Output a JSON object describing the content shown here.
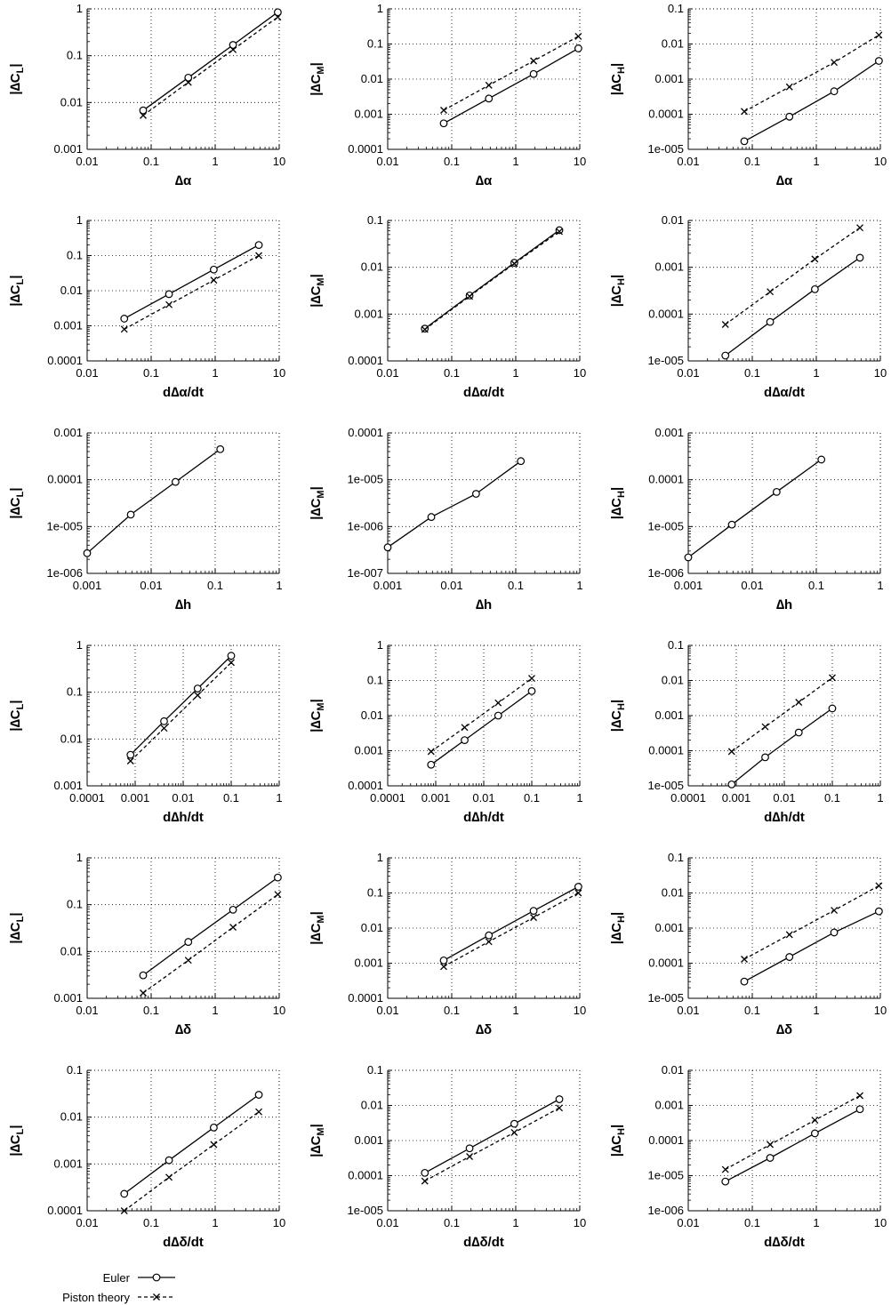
{
  "legend": {
    "series": [
      {
        "name": "Euler",
        "marker": "circle",
        "dash": "solid"
      },
      {
        "name": "Piston theory",
        "marker": "x",
        "dash": "dashed"
      }
    ]
  },
  "chart_data": [
    {
      "type": "line",
      "xscale": "log",
      "yscale": "log",
      "xlabel": "∆α",
      "ylabel": "|∆CL|",
      "xlim": [
        0.01,
        10
      ],
      "ylim": [
        0.001,
        1
      ],
      "xticks": [
        "0.01",
        "0.1",
        "1",
        "10"
      ],
      "yticks": [
        "0.001",
        "0.01",
        "0.1",
        "1"
      ],
      "series": [
        {
          "name": "Euler",
          "x": [
            0.075,
            0.38,
            1.9,
            9.5
          ],
          "values": [
            0.0068,
            0.034,
            0.17,
            0.85
          ]
        },
        {
          "name": "Piston theory",
          "x": [
            0.075,
            0.38,
            1.9,
            9.5
          ],
          "values": [
            0.0053,
            0.027,
            0.135,
            0.67
          ]
        }
      ]
    },
    {
      "type": "line",
      "xscale": "log",
      "yscale": "log",
      "xlabel": "∆α",
      "ylabel": "|∆CM|",
      "xlim": [
        0.01,
        10
      ],
      "ylim": [
        0.0001,
        1
      ],
      "xticks": [
        "0.01",
        "0.1",
        "1",
        "10"
      ],
      "yticks": [
        "0.0001",
        "0.001",
        "0.01",
        "0.1",
        "1"
      ],
      "series": [
        {
          "name": "Euler",
          "x": [
            0.075,
            0.38,
            1.9,
            9.5
          ],
          "values": [
            0.00055,
            0.0028,
            0.014,
            0.075
          ]
        },
        {
          "name": "Piston theory",
          "x": [
            0.075,
            0.38,
            1.9,
            9.5
          ],
          "values": [
            0.0013,
            0.0067,
            0.033,
            0.165
          ]
        }
      ]
    },
    {
      "type": "line",
      "xscale": "log",
      "yscale": "log",
      "xlabel": "∆α",
      "ylabel": "|∆CH|",
      "xlim": [
        0.01,
        10
      ],
      "ylim": [
        1e-05,
        0.1
      ],
      "xticks": [
        "0.01",
        "0.1",
        "1",
        "10"
      ],
      "yticks": [
        "1e-005",
        "0.0001",
        "0.001",
        "0.01",
        "0.1"
      ],
      "series": [
        {
          "name": "Euler",
          "x": [
            0.075,
            0.38,
            1.9,
            9.5
          ],
          "values": [
            1.7e-05,
            8.5e-05,
            0.00045,
            0.0033
          ]
        },
        {
          "name": "Piston theory",
          "x": [
            0.075,
            0.38,
            1.9,
            9.5
          ],
          "values": [
            0.00012,
            0.0006,
            0.003,
            0.018
          ]
        }
      ]
    },
    {
      "type": "line",
      "xscale": "log",
      "yscale": "log",
      "xlabel": "d∆α/dt",
      "ylabel": "|∆CL|",
      "xlim": [
        0.01,
        10
      ],
      "ylim": [
        0.0001,
        1
      ],
      "xticks": [
        "0.01",
        "0.1",
        "1",
        "10"
      ],
      "yticks": [
        "0.0001",
        "0.001",
        "0.01",
        "0.1",
        "1"
      ],
      "series": [
        {
          "name": "Euler",
          "x": [
            0.038,
            0.19,
            0.95,
            4.8
          ],
          "values": [
            0.0016,
            0.008,
            0.04,
            0.2
          ]
        },
        {
          "name": "Piston theory",
          "x": [
            0.038,
            0.19,
            0.95,
            4.8
          ],
          "values": [
            0.0008,
            0.004,
            0.02,
            0.1
          ]
        }
      ]
    },
    {
      "type": "line",
      "xscale": "log",
      "yscale": "log",
      "xlabel": "d∆α/dt",
      "ylabel": "|∆CM|",
      "xlim": [
        0.01,
        10
      ],
      "ylim": [
        0.0001,
        0.1
      ],
      "xticks": [
        "0.01",
        "0.1",
        "1",
        "10"
      ],
      "yticks": [
        "0.0001",
        "0.001",
        "0.01",
        "0.1"
      ],
      "series": [
        {
          "name": "Euler",
          "x": [
            0.038,
            0.19,
            0.95,
            4.8
          ],
          "values": [
            0.00049,
            0.0025,
            0.0125,
            0.062
          ]
        },
        {
          "name": "Piston theory",
          "x": [
            0.038,
            0.19,
            0.95,
            4.8
          ],
          "values": [
            0.00047,
            0.0024,
            0.012,
            0.058
          ]
        }
      ]
    },
    {
      "type": "line",
      "xscale": "log",
      "yscale": "log",
      "xlabel": "d∆α/dt",
      "ylabel": "|∆CH|",
      "xlim": [
        0.01,
        10
      ],
      "ylim": [
        1e-05,
        0.01
      ],
      "xticks": [
        "0.01",
        "0.1",
        "1",
        "10"
      ],
      "yticks": [
        "1e-005",
        "0.0001",
        "0.001",
        "0.01"
      ],
      "series": [
        {
          "name": "Euler",
          "x": [
            0.038,
            0.19,
            0.95,
            4.8
          ],
          "values": [
            1.3e-05,
            6.8e-05,
            0.00034,
            0.0016
          ]
        },
        {
          "name": "Piston theory",
          "x": [
            0.038,
            0.19,
            0.95,
            4.8
          ],
          "values": [
            6e-05,
            0.0003,
            0.0015,
            0.007
          ]
        }
      ]
    },
    {
      "type": "line",
      "xscale": "log",
      "yscale": "log",
      "xlabel": "∆h",
      "ylabel": "|∆CL|",
      "xlim": [
        0.001,
        1
      ],
      "ylim": [
        1e-06,
        0.001
      ],
      "xticks": [
        "0.001",
        "0.01",
        "0.1",
        "1"
      ],
      "yticks": [
        "1e-006",
        "1e-005",
        "0.0001",
        "0.001"
      ],
      "series": [
        {
          "name": "Euler",
          "x": [
            0.001,
            0.0048,
            0.024,
            0.12
          ],
          "values": [
            2.7e-06,
            1.8e-05,
            9e-05,
            0.00045
          ]
        }
      ]
    },
    {
      "type": "line",
      "xscale": "log",
      "yscale": "log",
      "xlabel": "∆h",
      "ylabel": "|∆CM|",
      "xlim": [
        0.001,
        1
      ],
      "ylim": [
        1e-07,
        0.0001
      ],
      "xticks": [
        "0.001",
        "0.01",
        "0.1",
        "1"
      ],
      "yticks": [
        "1e-007",
        "1e-006",
        "1e-005",
        "0.0001"
      ],
      "series": [
        {
          "name": "Euler",
          "x": [
            0.001,
            0.0048,
            0.024,
            0.12
          ],
          "values": [
            3.6e-07,
            1.6e-06,
            5e-06,
            2.5e-05
          ]
        }
      ]
    },
    {
      "type": "line",
      "xscale": "log",
      "yscale": "log",
      "xlabel": "∆h",
      "ylabel": "|∆CH|",
      "xlim": [
        0.001,
        1
      ],
      "ylim": [
        1e-06,
        0.001
      ],
      "xticks": [
        "0.001",
        "0.01",
        "0.1",
        "1"
      ],
      "yticks": [
        "1e-006",
        "1e-005",
        "0.0001",
        "0.001"
      ],
      "series": [
        {
          "name": "Euler",
          "x": [
            0.001,
            0.0048,
            0.024,
            0.12
          ],
          "values": [
            2.2e-06,
            1.1e-05,
            5.5e-05,
            0.00027
          ]
        }
      ]
    },
    {
      "type": "line",
      "xscale": "log",
      "yscale": "log",
      "xlabel": "d∆h/dt",
      "ylabel": "|∆CL|",
      "xlim": [
        0.0001,
        1
      ],
      "ylim": [
        0.001,
        1
      ],
      "xticks": [
        "0.0001",
        "0.001",
        "0.01",
        "0.1",
        "1"
      ],
      "yticks": [
        "0.001",
        "0.01",
        "0.1",
        "1"
      ],
      "series": [
        {
          "name": "Euler",
          "x": [
            0.0008,
            0.004,
            0.02,
            0.1
          ],
          "values": [
            0.0046,
            0.024,
            0.12,
            0.6
          ]
        },
        {
          "name": "Piston theory",
          "x": [
            0.0008,
            0.004,
            0.02,
            0.1
          ],
          "values": [
            0.0034,
            0.017,
            0.086,
            0.43
          ]
        }
      ]
    },
    {
      "type": "line",
      "xscale": "log",
      "yscale": "log",
      "xlabel": "d∆h/dt",
      "ylabel": "|∆CM|",
      "xlim": [
        0.0001,
        1
      ],
      "ylim": [
        0.0001,
        1
      ],
      "xticks": [
        "0.0001",
        "0.001",
        "0.01",
        "0.1",
        "1"
      ],
      "yticks": [
        "0.0001",
        "0.001",
        "0.01",
        "0.1",
        "1"
      ],
      "series": [
        {
          "name": "Euler",
          "x": [
            0.0008,
            0.004,
            0.02,
            0.1
          ],
          "values": [
            0.0004,
            0.002,
            0.01,
            0.05
          ]
        },
        {
          "name": "Piston theory",
          "x": [
            0.0008,
            0.004,
            0.02,
            0.1
          ],
          "values": [
            0.00095,
            0.0046,
            0.023,
            0.115
          ]
        }
      ]
    },
    {
      "type": "line",
      "xscale": "log",
      "yscale": "log",
      "xlabel": "d∆h/dt",
      "ylabel": "|∆CH|",
      "xlim": [
        0.0001,
        1
      ],
      "ylim": [
        1e-05,
        0.1
      ],
      "xticks": [
        "0.0001",
        "0.001",
        "0.01",
        "0.1",
        "1"
      ],
      "yticks": [
        "1e-005",
        "0.0001",
        "0.001",
        "0.01",
        "0.1"
      ],
      "series": [
        {
          "name": "Euler",
          "x": [
            0.0008,
            0.004,
            0.02,
            0.1
          ],
          "values": [
            1.1e-05,
            6.5e-05,
            0.00033,
            0.0016
          ]
        },
        {
          "name": "Piston theory",
          "x": [
            0.0008,
            0.004,
            0.02,
            0.1
          ],
          "values": [
            9.5e-05,
            0.00048,
            0.0024,
            0.012
          ]
        }
      ]
    },
    {
      "type": "line",
      "xscale": "log",
      "yscale": "log",
      "xlabel": "∆δ",
      "ylabel": "|∆CL|",
      "xlim": [
        0.01,
        10
      ],
      "ylim": [
        0.001,
        1
      ],
      "xticks": [
        "0.01",
        "0.1",
        "1",
        "10"
      ],
      "yticks": [
        "0.001",
        "0.01",
        "0.1",
        "1"
      ],
      "series": [
        {
          "name": "Euler",
          "x": [
            0.075,
            0.38,
            1.9,
            9.5
          ],
          "values": [
            0.0031,
            0.016,
            0.078,
            0.38
          ]
        },
        {
          "name": "Piston theory",
          "x": [
            0.075,
            0.38,
            1.9,
            9.5
          ],
          "values": [
            0.0013,
            0.0065,
            0.033,
            0.165
          ]
        }
      ]
    },
    {
      "type": "line",
      "xscale": "log",
      "yscale": "log",
      "xlabel": "∆δ",
      "ylabel": "|∆CM|",
      "xlim": [
        0.01,
        10
      ],
      "ylim": [
        0.0001,
        1
      ],
      "xticks": [
        "0.01",
        "0.1",
        "1",
        "10"
      ],
      "yticks": [
        "0.0001",
        "0.001",
        "0.01",
        "0.1",
        "1"
      ],
      "series": [
        {
          "name": "Euler",
          "x": [
            0.075,
            0.38,
            1.9,
            9.5
          ],
          "values": [
            0.0012,
            0.0062,
            0.031,
            0.15
          ]
        },
        {
          "name": "Piston theory",
          "x": [
            0.075,
            0.38,
            1.9,
            9.5
          ],
          "values": [
            0.0008,
            0.0041,
            0.02,
            0.1
          ]
        }
      ]
    },
    {
      "type": "line",
      "xscale": "log",
      "yscale": "log",
      "xlabel": "∆δ",
      "ylabel": "|∆CH|",
      "xlim": [
        0.01,
        10
      ],
      "ylim": [
        1e-05,
        0.1
      ],
      "xticks": [
        "0.01",
        "0.1",
        "1",
        "10"
      ],
      "yticks": [
        "1e-005",
        "0.0001",
        "0.001",
        "0.01",
        "0.1"
      ],
      "series": [
        {
          "name": "Euler",
          "x": [
            0.075,
            0.38,
            1.9,
            9.5
          ],
          "values": [
            3e-05,
            0.00015,
            0.00075,
            0.003
          ]
        },
        {
          "name": "Piston theory",
          "x": [
            0.075,
            0.38,
            1.9,
            9.5
          ],
          "values": [
            0.00013,
            0.00065,
            0.0032,
            0.016
          ]
        }
      ]
    },
    {
      "type": "line",
      "xscale": "log",
      "yscale": "log",
      "xlabel": "d∆δ/dt",
      "ylabel": "|∆CL|",
      "xlim": [
        0.01,
        10
      ],
      "ylim": [
        0.0001,
        0.1
      ],
      "xticks": [
        "0.01",
        "0.1",
        "1",
        "10"
      ],
      "yticks": [
        "0.0001",
        "0.001",
        "0.01",
        "0.1"
      ],
      "series": [
        {
          "name": "Euler",
          "x": [
            0.038,
            0.19,
            0.95,
            4.8
          ],
          "values": [
            0.00023,
            0.0012,
            0.006,
            0.03
          ]
        },
        {
          "name": "Piston theory",
          "x": [
            0.038,
            0.19,
            0.95,
            4.8
          ],
          "values": [
            0.0001,
            0.00052,
            0.0026,
            0.013
          ]
        }
      ]
    },
    {
      "type": "line",
      "xscale": "log",
      "yscale": "log",
      "xlabel": "d∆δ/dt",
      "ylabel": "|∆CM|",
      "xlim": [
        0.01,
        10
      ],
      "ylim": [
        1e-05,
        0.1
      ],
      "xticks": [
        "0.01",
        "0.1",
        "1",
        "10"
      ],
      "yticks": [
        "1e-005",
        "0.0001",
        "0.001",
        "0.01",
        "0.1"
      ],
      "series": [
        {
          "name": "Euler",
          "x": [
            0.038,
            0.19,
            0.95,
            4.8
          ],
          "values": [
            0.00012,
            0.0006,
            0.003,
            0.015
          ]
        },
        {
          "name": "Piston theory",
          "x": [
            0.038,
            0.19,
            0.95,
            4.8
          ],
          "values": [
            7e-05,
            0.00035,
            0.0017,
            0.0085
          ]
        }
      ]
    },
    {
      "type": "line",
      "xscale": "log",
      "yscale": "log",
      "xlabel": "d∆δ/dt",
      "ylabel": "|∆CH|",
      "xlim": [
        0.01,
        10
      ],
      "ylim": [
        1e-06,
        0.01
      ],
      "xticks": [
        "0.01",
        "0.1",
        "1",
        "10"
      ],
      "yticks": [
        "1e-006",
        "1e-005",
        "0.0001",
        "0.001",
        "0.01"
      ],
      "series": [
        {
          "name": "Euler",
          "x": [
            0.038,
            0.19,
            0.95,
            4.8
          ],
          "values": [
            6.8e-06,
            3.2e-05,
            0.00016,
            0.00078
          ]
        },
        {
          "name": "Piston theory",
          "x": [
            0.038,
            0.19,
            0.95,
            4.8
          ],
          "values": [
            1.5e-05,
            7.7e-05,
            0.00038,
            0.0019
          ]
        }
      ]
    }
  ]
}
